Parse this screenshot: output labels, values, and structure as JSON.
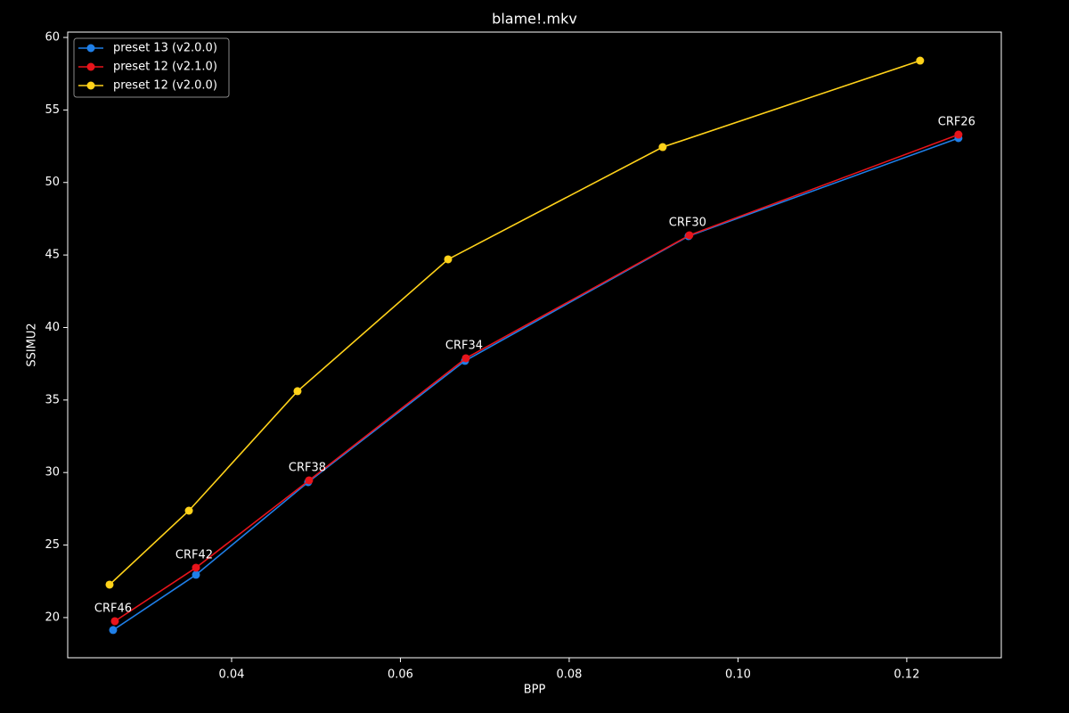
{
  "chart_data": {
    "type": "line",
    "title": "blame!.mkv",
    "x_label": "BPP",
    "y_label": "SSIMU2",
    "xlim": [
      0.02058,
      0.1312
    ],
    "ylim": [
      17.23,
      60.37
    ],
    "xticks": [
      0.04,
      0.06,
      0.08,
      {
        "value": 0.1,
        "label": "0.10"
      },
      0.12
    ],
    "yticks": [
      20,
      25,
      30,
      35,
      40,
      45,
      50,
      55,
      60
    ],
    "legend": "upper left",
    "series": [
      {
        "name": "preset 13 (v2.0.0)",
        "color": "#1f7fe8",
        "x": [
          0.02596,
          0.03578,
          0.04907,
          0.06765,
          0.09414,
          0.12612
        ],
        "values": [
          19.14,
          22.95,
          29.34,
          37.7,
          46.3,
          53.06
        ]
      },
      {
        "name": "preset 12 (v2.1.0)",
        "color": "#e8141b",
        "x": [
          0.02617,
          0.03578,
          0.04918,
          0.06776,
          0.09424,
          0.12612
        ],
        "values": [
          19.75,
          23.44,
          29.46,
          37.88,
          46.36,
          53.3
        ],
        "point_labels": [
          "CRF46",
          "CRF42",
          "CRF38",
          "CRF34",
          "CRF30",
          "CRF26"
        ]
      },
      {
        "name": "preset 12 (v2.0.0)",
        "color": "#ffd21a",
        "x": [
          0.02554,
          0.03494,
          0.04781,
          0.06565,
          0.09108,
          0.12158
        ],
        "values": [
          22.27,
          27.37,
          35.61,
          44.7,
          52.44,
          58.4
        ]
      }
    ]
  }
}
